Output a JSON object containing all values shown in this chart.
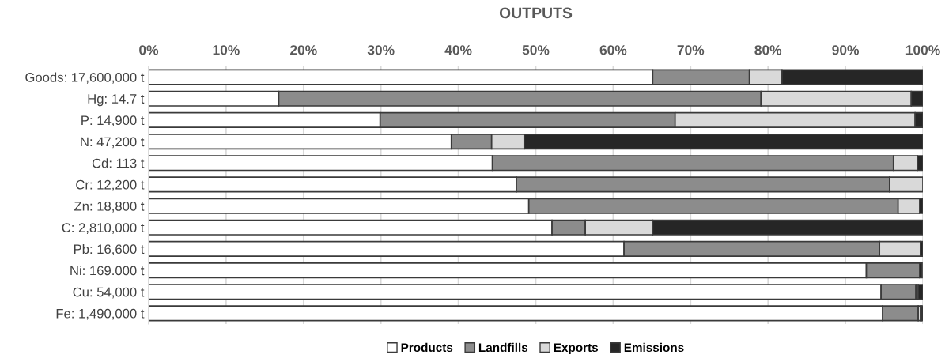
{
  "chart_data": {
    "type": "bar",
    "orientation": "horizontal",
    "stacked": true,
    "title": "OUTPUTS",
    "categories": [
      "Goods: 17,600,000 t",
      "Hg: 14.7 t",
      "P: 14,900 t",
      "N: 47,200 t",
      "Cd: 113 t",
      "Cr: 12,200 t",
      "Zn: 18,800 t",
      "C: 2,810,000 t",
      "Pb: 16,600 t",
      "Ni: 169.000 t",
      "Cu: 54,000 t",
      "Fe: 1,490,000 t"
    ],
    "series": [
      {
        "name": "Products",
        "color": "#ffffff",
        "values": [
          65.1,
          16.8,
          29.9,
          39.1,
          44.4,
          47.5,
          49.1,
          52.1,
          61.4,
          92.7,
          94.6,
          94.8
        ]
      },
      {
        "name": "Landfills",
        "color": "#8c8c8c",
        "values": [
          12.5,
          62.3,
          38.1,
          5.2,
          51.8,
          48.2,
          47.7,
          4.3,
          33.0,
          6.9,
          4.5,
          4.6
        ]
      },
      {
        "name": "Exports",
        "color": "#d9d9d9",
        "values": [
          4.2,
          19.4,
          31.0,
          4.2,
          3.1,
          4.3,
          2.8,
          8.7,
          5.3,
          null,
          0.3,
          0.4
        ]
      },
      {
        "name": "Emissions",
        "color": "#262626",
        "values": [
          18.2,
          1.5,
          1.0,
          51.5,
          0.7,
          null,
          0.4,
          34.9,
          0.3,
          0.3,
          0.6,
          0.2
        ]
      }
    ],
    "xlim": [
      0,
      100
    ],
    "xticks": [
      {
        "value": 0,
        "label": "0%"
      },
      {
        "value": 10,
        "label": "10%"
      },
      {
        "value": 20,
        "label": "20%"
      },
      {
        "value": 30,
        "label": "30%"
      },
      {
        "value": 40,
        "label": "40%"
      },
      {
        "value": 50,
        "label": "50%"
      },
      {
        "value": 60,
        "label": "60%"
      },
      {
        "value": 70,
        "label": "70%"
      },
      {
        "value": 80,
        "label": "80%"
      },
      {
        "value": 90,
        "label": "90%"
      },
      {
        "value": 100,
        "label": "100%"
      }
    ],
    "grid": "x",
    "legend": "bottom"
  }
}
